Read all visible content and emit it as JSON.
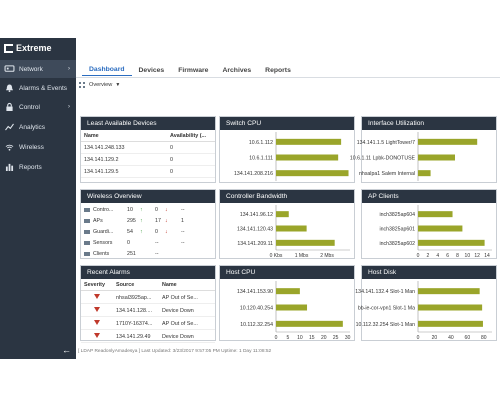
{
  "brand": "Extreme",
  "sidebar": {
    "items": [
      {
        "label": "Network",
        "icon": "network-icon",
        "chevron": "›"
      },
      {
        "label": "Alarms & Events",
        "icon": "bell-icon"
      },
      {
        "label": "Control",
        "icon": "lock-icon",
        "chevron": "›"
      },
      {
        "label": "Analytics",
        "icon": "analytics-icon"
      },
      {
        "label": "Wireless",
        "icon": "wifi-icon"
      },
      {
        "label": "Reports",
        "icon": "reports-icon"
      }
    ],
    "collapse": "←"
  },
  "tabs": [
    "Dashboard",
    "Devices",
    "Firmware",
    "Archives",
    "Reports"
  ],
  "overview": {
    "label": "Overview",
    "arrow": "▼"
  },
  "least_available": {
    "title": "Least Available Devices",
    "columns": [
      "Name",
      "Availability (..."
    ],
    "rows": [
      {
        "name": "134.141.248.133",
        "value": "0"
      },
      {
        "name": "134.141.129.2",
        "value": "0"
      },
      {
        "name": "134.141.129.5",
        "value": "0"
      }
    ]
  },
  "wireless_overview": {
    "title": "Wireless Overview",
    "rows": [
      {
        "label": "Contro...",
        "a": "10",
        "a_dir": "↑",
        "b": "0",
        "b_dir": "↓",
        "c": "--"
      },
      {
        "label": "APs",
        "a": "295",
        "a_dir": "↑",
        "b": "17",
        "b_dir": "↓",
        "c": "1"
      },
      {
        "label": "Guardi...",
        "a": "54",
        "a_dir": "↑",
        "b": "0",
        "b_dir": "↓",
        "c": "--"
      },
      {
        "label": "Sensors",
        "a": "0",
        "a_dir": "",
        "b": "--",
        "b_dir": "",
        "c": "--"
      },
      {
        "label": "Clients",
        "a": "251",
        "a_dir": "",
        "b": "--",
        "b_dir": "",
        "c": ""
      }
    ]
  },
  "recent_alarms": {
    "title": "Recent Alarms",
    "columns": [
      "Severity",
      "Source",
      "Name"
    ],
    "rows": [
      {
        "source": "nhsal3925ap...",
        "name": "AP Out of Se..."
      },
      {
        "source": "134.141.128....",
        "name": "Device Down"
      },
      {
        "source": "1710Y-16374...",
        "name": "AP Out of Se..."
      },
      {
        "source": "134.141.29.49",
        "name": "Device Down"
      }
    ]
  },
  "footer": "[ LDAP ReadonlyAmadesya ]   Last Updated: 3/23/2017 9:57:05 PM   Uptime: 1 Day 11:08:52",
  "colors": {
    "sidebar": "#2b3542",
    "bar": "#9aa52a",
    "accent": "#2a6cc0"
  },
  "chart_data": [
    {
      "type": "bar",
      "title": "Switch CPU",
      "orientation": "horizontal",
      "categories": [
        "10.6.1.112",
        "10.6.1.111",
        "134.141.208.216"
      ],
      "values": [
        88,
        84,
        98
      ],
      "xlim": [
        0,
        100
      ],
      "ticks": []
    },
    {
      "type": "bar",
      "title": "Interface Utilization",
      "orientation": "horizontal",
      "categories": [
        "134.141.1.5 LightTower/7",
        "10.6.1.11 Lpbk-DONOTUSE",
        "nhsalpa1 Salem Internal"
      ],
      "values": [
        80,
        50,
        17
      ],
      "xlim": [
        0,
        100
      ],
      "ticks": []
    },
    {
      "type": "bar",
      "title": "Controller Bandwidth",
      "orientation": "horizontal",
      "categories": [
        "134.141.96.12",
        "134.141.120.43",
        "134.141.209.11"
      ],
      "values": [
        0.5,
        1.2,
        2.3
      ],
      "xlim": [
        0,
        2.9
      ],
      "ticks": [
        {
          "v": 0,
          "label": "0 Kbs"
        },
        {
          "v": 1,
          "label": "1 Mbs"
        },
        {
          "v": 2,
          "label": "2 Mbs"
        }
      ]
    },
    {
      "type": "bar",
      "title": "AP Clients",
      "orientation": "horizontal",
      "categories": [
        "inch3825ap604",
        "inch3825ap601",
        "inch3825ap602"
      ],
      "values": [
        7,
        9,
        13.5
      ],
      "xlim": [
        0,
        15
      ],
      "ticks": [
        {
          "v": 0,
          "label": "0"
        },
        {
          "v": 2,
          "label": "2"
        },
        {
          "v": 4,
          "label": "4"
        },
        {
          "v": 6,
          "label": "6"
        },
        {
          "v": 8,
          "label": "8"
        },
        {
          "v": 10,
          "label": "10"
        },
        {
          "v": 12,
          "label": "12"
        },
        {
          "v": 14,
          "label": "14"
        }
      ]
    },
    {
      "type": "bar",
      "title": "Host CPU",
      "orientation": "horizontal",
      "categories": [
        "134.141.153.90",
        "10.120.40.254",
        "10.112.32.254"
      ],
      "values": [
        10,
        13,
        28
      ],
      "xlim": [
        0,
        31
      ],
      "ticks": [
        {
          "v": 0,
          "label": "0"
        },
        {
          "v": 5,
          "label": "5"
        },
        {
          "v": 10,
          "label": "10"
        },
        {
          "v": 15,
          "label": "15"
        },
        {
          "v": 20,
          "label": "20"
        },
        {
          "v": 25,
          "label": "25"
        },
        {
          "v": 30,
          "label": "30"
        }
      ]
    },
    {
      "type": "bar",
      "title": "Host Disk",
      "orientation": "horizontal",
      "categories": [
        "134.141.132.4 Slot-1 Man",
        "bb-ie-cor-vpn1 Slot-1 Ma",
        "10.112.32.254 Slot-1 Man"
      ],
      "values": [
        75,
        78,
        79
      ],
      "xlim": [
        0,
        90
      ],
      "ticks": [
        {
          "v": 0,
          "label": "0"
        },
        {
          "v": 20,
          "label": "20"
        },
        {
          "v": 40,
          "label": "40"
        },
        {
          "v": 60,
          "label": "60"
        },
        {
          "v": 80,
          "label": "80"
        }
      ]
    }
  ]
}
